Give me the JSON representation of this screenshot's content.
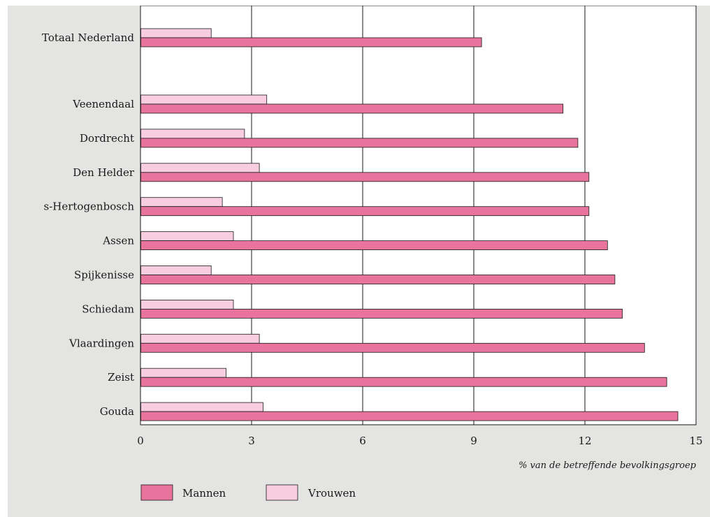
{
  "chart_data": {
    "type": "bar",
    "orientation": "horizontal",
    "categories": [
      "Totaal Nederland",
      "Veenendaal",
      "Dordrecht",
      "Den Helder",
      "s-Hertogenbosch",
      "Assen",
      "Spijkenisse",
      "Schiedam",
      "Vlaardingen",
      "Zeist",
      "Gouda"
    ],
    "series": [
      {
        "name": "Mannen",
        "color": "#e8749e",
        "values": [
          9.2,
          11.4,
          11.8,
          12.1,
          12.1,
          12.6,
          12.8,
          13.0,
          13.6,
          14.2,
          14.5
        ]
      },
      {
        "name": "Vrouwen",
        "color": "#f8cde0",
        "values": [
          1.9,
          3.4,
          2.8,
          3.2,
          2.2,
          2.5,
          1.9,
          2.5,
          3.2,
          2.3,
          3.3
        ]
      }
    ],
    "xlim": [
      0,
      15
    ],
    "xticks": [
      "0",
      "3",
      "6",
      "9",
      "12",
      "15"
    ],
    "xlabel": "% van de betreffende bevolkingsgroep",
    "grid": true,
    "legend_position": "bottom-left"
  }
}
